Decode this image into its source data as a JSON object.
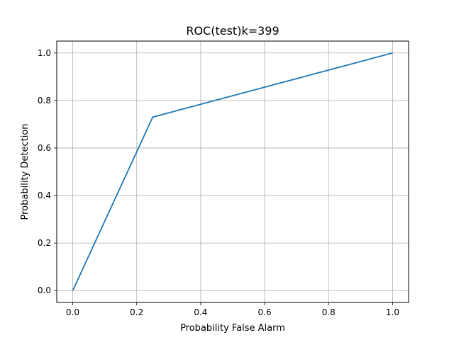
{
  "chart_data": {
    "type": "line",
    "title": "ROC(test)k=399",
    "xlabel": "Probability False Alarm",
    "ylabel": "Probability Detection",
    "xlim": [
      -0.05,
      1.05
    ],
    "ylim": [
      -0.05,
      1.05
    ],
    "xticks": [
      0.0,
      0.2,
      0.4,
      0.6,
      0.8,
      1.0
    ],
    "yticks": [
      0.0,
      0.2,
      0.4,
      0.6,
      0.8,
      1.0
    ],
    "xtick_labels": [
      "0.0",
      "0.2",
      "0.4",
      "0.6",
      "0.8",
      "1.0"
    ],
    "ytick_labels": [
      "0.0",
      "0.2",
      "0.4",
      "0.6",
      "0.8",
      "1.0"
    ],
    "grid": true,
    "series": [
      {
        "x": [
          0.0,
          0.25,
          1.0
        ],
        "y": [
          0.0,
          0.73,
          1.0
        ],
        "color": "#1f77b4"
      }
    ]
  }
}
